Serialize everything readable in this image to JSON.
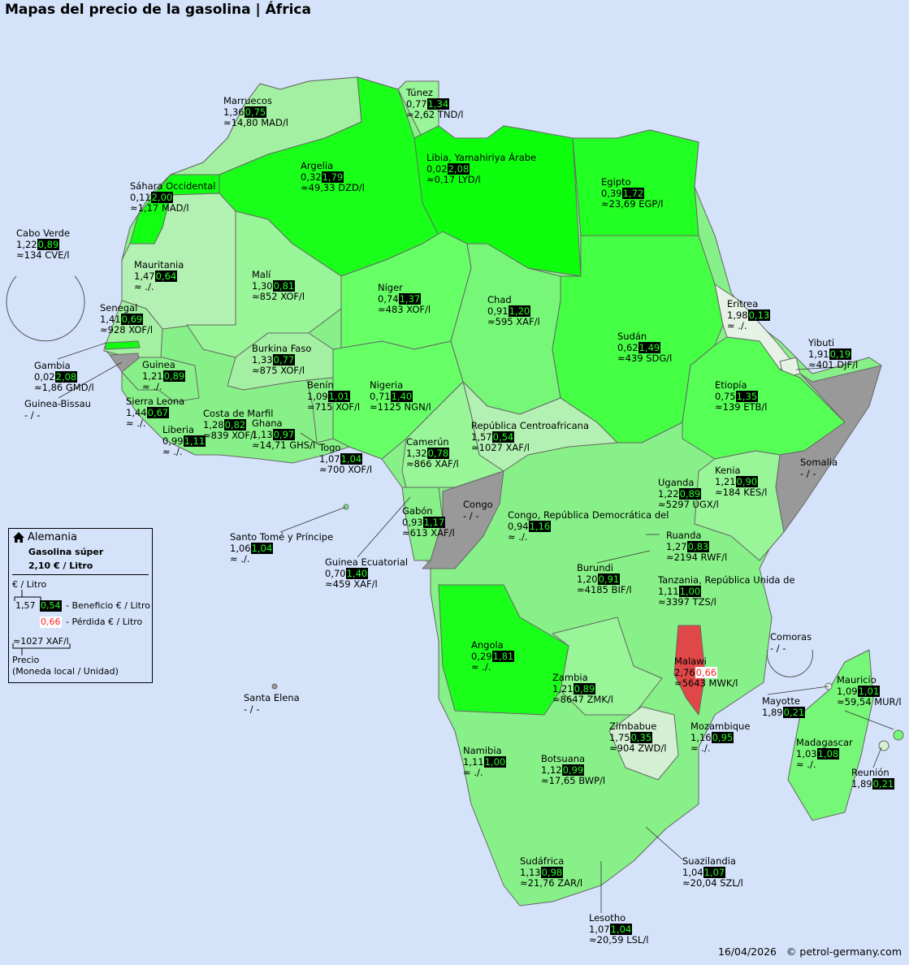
{
  "title": "Mapas del precio de la gasolina | África",
  "colors": {
    "background": "#d4e3fa",
    "high_benefit": "#0dff0d",
    "low_benefit": "#d3f0d3",
    "loss": "#e04848",
    "no_data": "#999999",
    "badge_bg": "#000000",
    "badge_benefit": "#22ff22",
    "badge_loss": "#ff2222"
  },
  "legend": {
    "home_icon": "house-icon",
    "country": "Alemania",
    "fuel": "Gasolina súper",
    "reference_price": "2,10 € / Litro",
    "unit_label": "€ / Litro",
    "example_price": "1,57",
    "example_benefit": "0,54",
    "benefit_label": "- Beneficio € / Litro",
    "example_loss": "0,66",
    "loss_label": "- Pérdida € / Litro",
    "example_local": "≈1027 XAF/l",
    "local_label": "Precio",
    "local_sub": "(Moneda local / Unidad)"
  },
  "countries": [
    {
      "name": "Marruecos",
      "price": "1,36",
      "diff": "0,75",
      "local": "≈14,80 MAD/l"
    },
    {
      "name": "Túnez",
      "price": "0,77",
      "diff": "1,34",
      "local": "≈2,62 TND/l"
    },
    {
      "name": "Argelia",
      "price": "0,32",
      "diff": "1,79",
      "local": "≈49,33 DZD/l"
    },
    {
      "name": "Libia, Yamahiriya Árabe",
      "price": "0,02",
      "diff": "2,08",
      "local": "≈0,17 LYD/l"
    },
    {
      "name": "Egipto",
      "price": "0,39",
      "diff": "1,72",
      "local": "≈23,69 EGP/l"
    },
    {
      "name": "Sáhara Occidental",
      "price": "0,11",
      "diff": "2,00",
      "local": "≈1,17 MAD/l"
    },
    {
      "name": "Cabo Verde",
      "price": "1,22",
      "diff": "0,89",
      "local": "≈134 CVE/l"
    },
    {
      "name": "Mauritania",
      "price": "1,47",
      "diff": "0,64",
      "local": "≈ ./."
    },
    {
      "name": "Malí",
      "price": "1,30",
      "diff": "0,81",
      "local": "≈852 XOF/l"
    },
    {
      "name": "Níger",
      "price": "0,74",
      "diff": "1,37",
      "local": "≈483 XOF/l"
    },
    {
      "name": "Chad",
      "price": "0,91",
      "diff": "1,20",
      "local": "≈595 XAF/l"
    },
    {
      "name": "Senegal",
      "price": "1,41",
      "diff": "0,69",
      "local": "≈928 XOF/l"
    },
    {
      "name": "Eritrea",
      "price": "1,98",
      "diff": "0,13",
      "local": "≈ ./."
    },
    {
      "name": "Sudán",
      "price": "0,62",
      "diff": "1,49",
      "local": "≈439 SDG/l"
    },
    {
      "name": "Yibuti",
      "price": "1,91",
      "diff": "0,19",
      "local": "≈401 DJF/l"
    },
    {
      "name": "Burkina Faso",
      "price": "1,33",
      "diff": "0,77",
      "local": "≈875 XOF/l"
    },
    {
      "name": "Gambia",
      "price": "0,02",
      "diff": "2,08",
      "local": "≈1,86 GMD/l"
    },
    {
      "name": "Guinea",
      "price": "1,21",
      "diff": "0,89",
      "local": "≈ ./."
    },
    {
      "name": "Benín",
      "price": "1,09",
      "diff": "1,01",
      "local": "≈715 XOF/l"
    },
    {
      "name": "Nigeria",
      "price": "0,71",
      "diff": "1,40",
      "local": "≈1125 NGN/l"
    },
    {
      "name": "Etiopía",
      "price": "0,75",
      "diff": "1,35",
      "local": "≈139 ETB/l"
    },
    {
      "name": "Guinea-Bissau",
      "nodata": "- / -"
    },
    {
      "name": "Sierra Leona",
      "price": "1,44",
      "diff": "0,67",
      "local": "≈ ./."
    },
    {
      "name": "Costa de Marfil",
      "price": "1,28",
      "diff": "0,82",
      "local": "≈839 XOF/l"
    },
    {
      "name": "Ghana",
      "price": "1,13",
      "diff": "0,97",
      "local": "≈14,71 GHS/l"
    },
    {
      "name": "Liberia",
      "price": "0,99",
      "diff": "1,11",
      "local": "≈ ./."
    },
    {
      "name": "República Centroafricana",
      "price": "1,57",
      "diff": "0,54",
      "local": "≈1027 XAF/l"
    },
    {
      "name": "Camerún",
      "price": "1,32",
      "diff": "0,78",
      "local": "≈866 XAF/l"
    },
    {
      "name": "Togo",
      "price": "1,07",
      "diff": "1,04",
      "local": "≈700 XOF/l"
    },
    {
      "name": "Kenia",
      "price": "1,21",
      "diff": "0,90",
      "local": "≈184 KES/l"
    },
    {
      "name": "Somalia",
      "nodata": "- / -"
    },
    {
      "name": "Uganda",
      "price": "1,22",
      "diff": "0,89",
      "local": "≈5297 UGX/l"
    },
    {
      "name": "Congo",
      "nodata": "- / -"
    },
    {
      "name": "Gabón",
      "price": "0,93",
      "diff": "1,17",
      "local": "≈613 XAF/l"
    },
    {
      "name": "Congo, República Democrática del",
      "price": "0,94",
      "diff": "1,16",
      "local": "≈ ./."
    },
    {
      "name": "Ruanda",
      "price": "1,27",
      "diff": "0,83",
      "local": "≈2194 RWF/l"
    },
    {
      "name": "Santo Tomé y Príncipe",
      "price": "1,06",
      "diff": "1,04",
      "local": "≈ ./."
    },
    {
      "name": "Guinea Ecuatorial",
      "price": "0,70",
      "diff": "1,40",
      "local": "≈459 XAF/l"
    },
    {
      "name": "Burundi",
      "price": "1,20",
      "diff": "0,91",
      "local": "≈4185 BIF/l"
    },
    {
      "name": "Tanzania, República Unida de",
      "price": "1,11",
      "diff": "1,00",
      "local": "≈3397 TZS/l"
    },
    {
      "name": "Comoras",
      "nodata": "- / -"
    },
    {
      "name": "Angola",
      "price": "0,29",
      "diff": "1,81",
      "local": "≈ ./."
    },
    {
      "name": "Malawi",
      "price": "2,76",
      "diff": "0,66",
      "loss": true,
      "local": "≈5643 MWK/l"
    },
    {
      "name": "Zambia",
      "price": "1,21",
      "diff": "0,89",
      "local": "≈8647 ZMK/l"
    },
    {
      "name": "Mauricio",
      "price": "1,09",
      "diff": "1,01",
      "local": "≈59,54 MUR/l"
    },
    {
      "name": "Mayotte",
      "price": "1,89",
      "diff": "0,21"
    },
    {
      "name": "Santa Elena",
      "nodata": "- / -"
    },
    {
      "name": "Zimbabue",
      "price": "1,75",
      "diff": "0,35",
      "local": "≈904 ZWD/l"
    },
    {
      "name": "Mozambique",
      "price": "1,16",
      "diff": "0,95",
      "local": "≈ ./."
    },
    {
      "name": "Madagascar",
      "price": "1,03",
      "diff": "1,08",
      "local": "≈ ./."
    },
    {
      "name": "Namibia",
      "price": "1,11",
      "diff": "1,00",
      "local": "≈ ./."
    },
    {
      "name": "Botsuana",
      "price": "1,12",
      "diff": "0,99",
      "local": "≈17,65 BWP/l"
    },
    {
      "name": "Reunión",
      "price": "1,89",
      "diff": "0,21"
    },
    {
      "name": "Suazilandia",
      "price": "1,04",
      "diff": "1,07",
      "local": "≈20,04 SZL/l"
    },
    {
      "name": "Sudáfrica",
      "price": "1,13",
      "diff": "0,98",
      "local": "≈21,76 ZAR/l"
    },
    {
      "name": "Lesotho",
      "price": "1,07",
      "diff": "1,04",
      "local": "≈20,59 LSL/l"
    }
  ],
  "footer": {
    "date": "16/04/2026",
    "copyright": "© petrol-germany.com"
  }
}
